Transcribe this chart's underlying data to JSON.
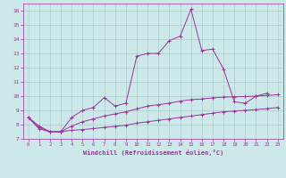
{
  "xlabel": "Windchill (Refroidissement éolien,°C)",
  "bg_color": "#cce8e8",
  "line_color": "#993399",
  "grid_color": "#aacccc",
  "xlim": [
    -0.5,
    23.5
  ],
  "ylim": [
    7,
    16.5
  ],
  "xticks": [
    0,
    1,
    2,
    3,
    4,
    5,
    6,
    7,
    8,
    9,
    10,
    11,
    12,
    13,
    14,
    15,
    16,
    17,
    18,
    19,
    20,
    21,
    22,
    23
  ],
  "yticks": [
    7,
    8,
    9,
    10,
    11,
    12,
    13,
    14,
    15,
    16
  ],
  "series1_x": [
    0,
    1,
    2,
    3,
    4,
    5,
    6,
    7,
    8,
    9,
    10,
    11,
    12,
    13,
    14,
    15,
    16,
    17,
    18,
    19,
    20,
    21,
    22
  ],
  "series1_y": [
    8.5,
    7.9,
    7.5,
    7.5,
    8.5,
    9.0,
    9.2,
    9.9,
    9.3,
    9.5,
    12.8,
    13.0,
    13.0,
    13.9,
    14.2,
    16.1,
    13.2,
    13.3,
    11.9,
    9.6,
    9.5,
    10.0,
    10.2
  ],
  "series2_x": [
    0,
    1,
    2,
    3,
    4,
    5,
    6,
    7,
    8,
    9,
    10,
    11,
    12,
    13,
    14,
    15,
    16,
    17,
    18,
    19,
    20,
    21,
    22,
    23
  ],
  "series2_y": [
    8.5,
    7.8,
    7.5,
    7.5,
    7.9,
    8.2,
    8.4,
    8.6,
    8.75,
    8.9,
    9.1,
    9.3,
    9.4,
    9.5,
    9.65,
    9.75,
    9.8,
    9.88,
    9.93,
    9.95,
    9.97,
    10.0,
    10.05,
    10.1
  ],
  "series3_x": [
    0,
    1,
    2,
    3,
    4,
    5,
    6,
    7,
    8,
    9,
    10,
    11,
    12,
    13,
    14,
    15,
    16,
    17,
    18,
    19,
    20,
    21,
    22,
    23
  ],
  "series3_y": [
    8.5,
    7.7,
    7.5,
    7.5,
    7.6,
    7.65,
    7.72,
    7.8,
    7.88,
    7.96,
    8.1,
    8.2,
    8.3,
    8.4,
    8.5,
    8.6,
    8.7,
    8.8,
    8.9,
    8.95,
    9.0,
    9.05,
    9.12,
    9.2
  ]
}
